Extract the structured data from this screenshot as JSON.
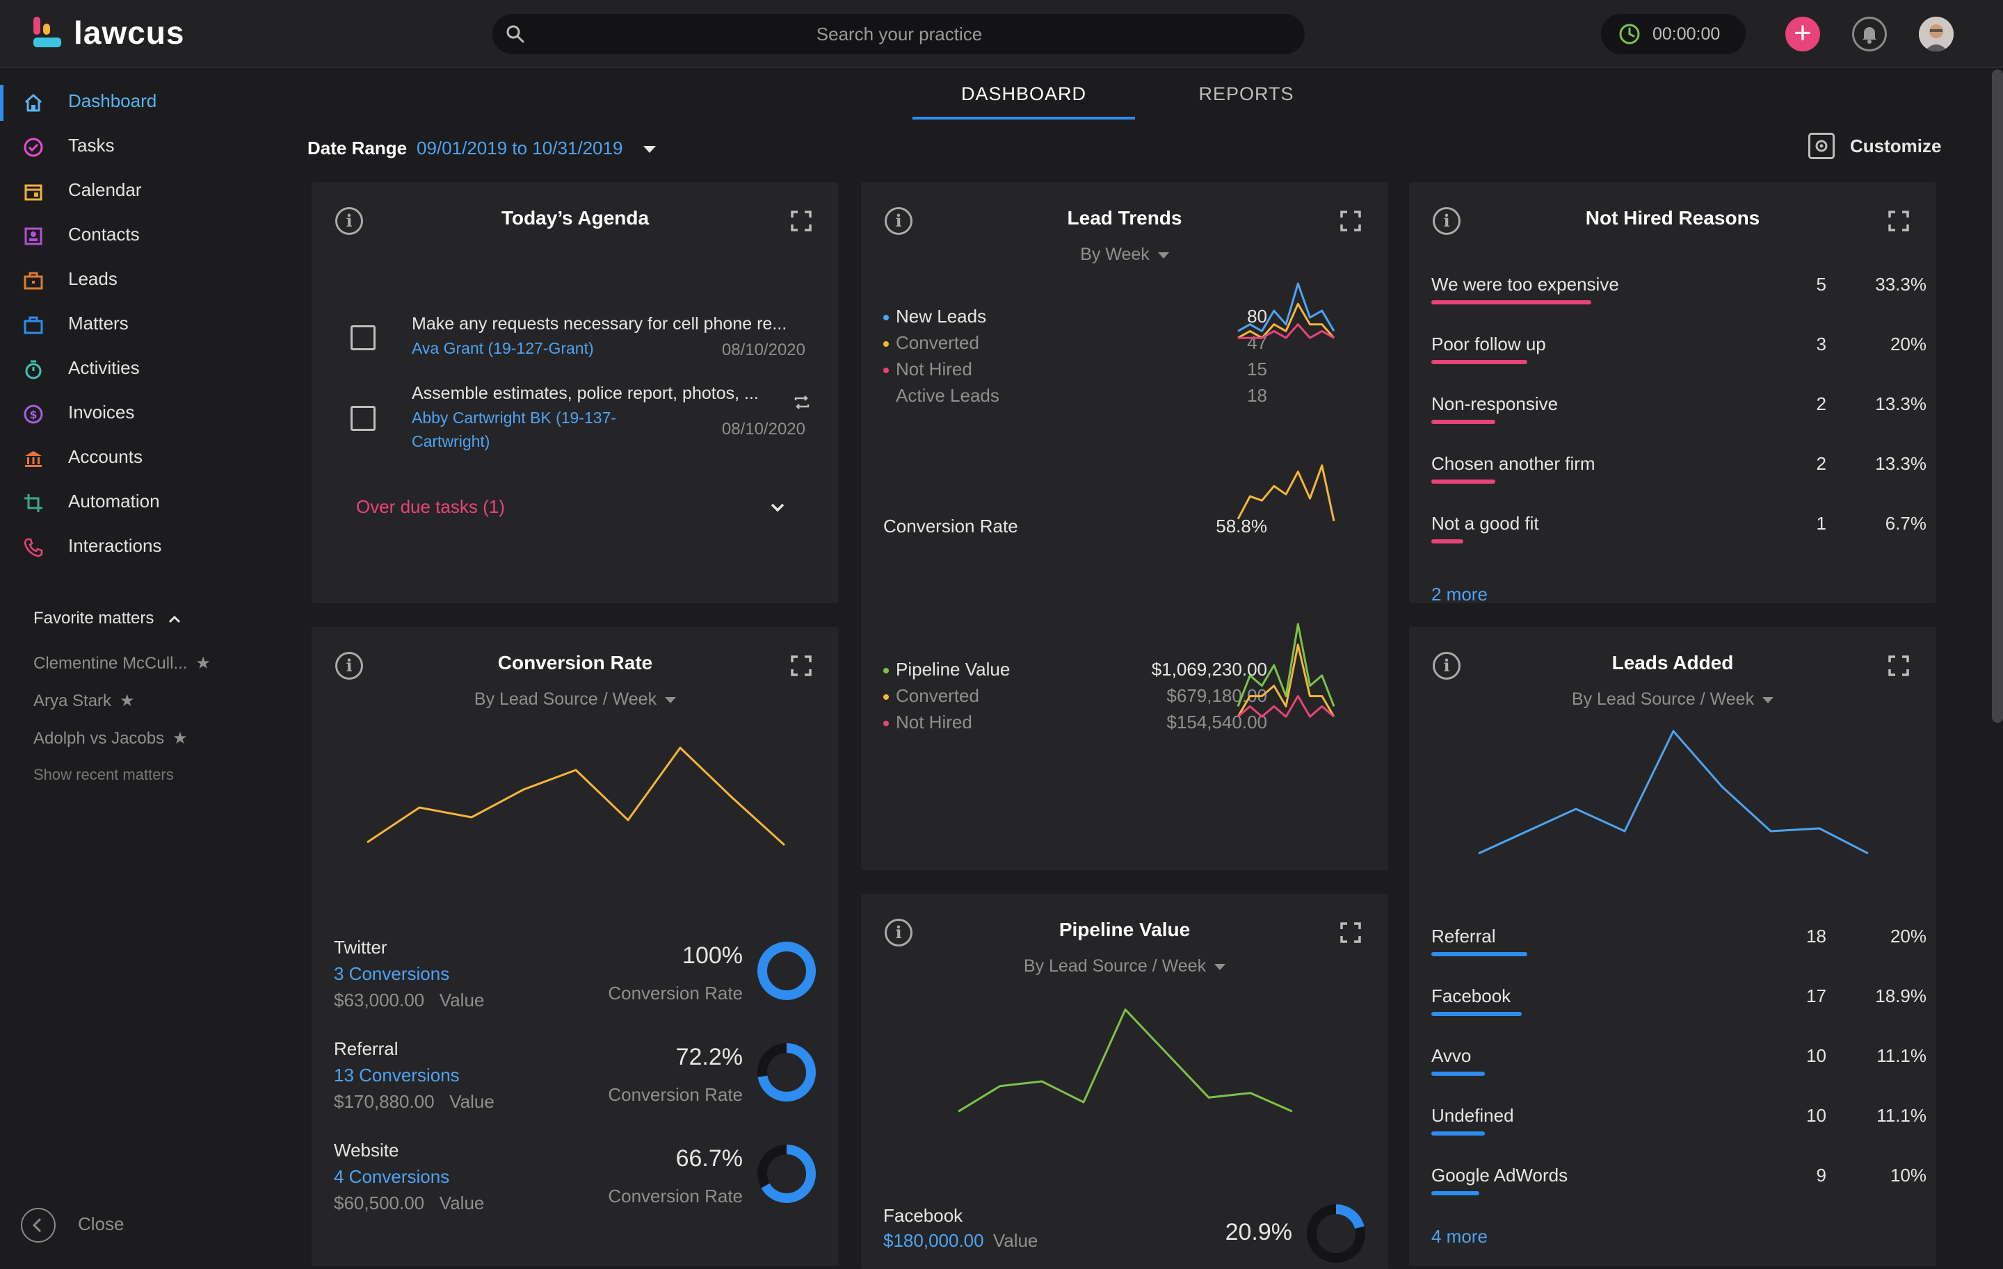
{
  "app": {
    "name": "lawcus"
  },
  "search": {
    "placeholder": "Search your practice"
  },
  "timer": {
    "value": "00:00:00"
  },
  "header": {
    "add_label": "+"
  },
  "sidebar": {
    "items": [
      {
        "label": "Dashboard",
        "icon": "home-icon",
        "color": "#58b3f2"
      },
      {
        "label": "Tasks",
        "icon": "check-circle-icon",
        "color": "#e84cd0"
      },
      {
        "label": "Calendar",
        "icon": "calendar-icon",
        "color": "#f0b23a"
      },
      {
        "label": "Contacts",
        "icon": "contact-card-icon",
        "color": "#b44fd8"
      },
      {
        "label": "Leads",
        "icon": "briefcase-icon",
        "color": "#e07a30"
      },
      {
        "label": "Matters",
        "icon": "case-icon",
        "color": "#2f8cf0"
      },
      {
        "label": "Activities",
        "icon": "stopwatch-icon",
        "color": "#3dc4b0"
      },
      {
        "label": "Invoices",
        "icon": "dollar-circle-icon",
        "color": "#a65de0"
      },
      {
        "label": "Accounts",
        "icon": "bank-icon",
        "color": "#e8743a"
      },
      {
        "label": "Automation",
        "icon": "crop-icon",
        "color": "#3da88c"
      },
      {
        "label": "Interactions",
        "icon": "phone-icon",
        "color": "#e8437a"
      }
    ],
    "favorites_title": "Favorite matters",
    "favorites": [
      "Clementine McCull...",
      "Arya Stark",
      "Adolph vs Jacobs"
    ],
    "show_recent": "Show recent matters",
    "close_label": "Close"
  },
  "tabs": [
    {
      "label": "DASHBOARD"
    },
    {
      "label": "REPORTS"
    }
  ],
  "date_range": {
    "label": "Date Range",
    "value": "09/01/2019 to 10/31/2019"
  },
  "customize": {
    "label": "Customize"
  },
  "agenda": {
    "title": "Today’s Agenda",
    "tasks": [
      {
        "title": "Make any requests necessary for cell phone re...",
        "matter": "Ava Grant (19-127-Grant)",
        "date": "08/10/2020"
      },
      {
        "title": "Assemble estimates, police report, photos, ...",
        "matter": "Abby Cartwright BK (19-137-Cartwright)",
        "date": "08/10/2020"
      }
    ],
    "overdue": "Over due tasks (1)"
  },
  "lead_trends": {
    "title": "Lead Trends",
    "subtitle": "By Week",
    "rows": [
      {
        "label": "New Leads",
        "value": "80",
        "color": "#4ea3f2"
      },
      {
        "label": "Converted",
        "value": "47",
        "color": "#f5b53a"
      },
      {
        "label": "Not Hired",
        "value": "15",
        "color": "#e8437a"
      },
      {
        "label": "Active Leads",
        "value": "18",
        "color": ""
      }
    ],
    "conversion": {
      "label": "Conversion Rate",
      "value": "58.8%"
    },
    "pipeline": [
      {
        "label": "Pipeline Value",
        "value": "$1,069,230.00",
        "color": "#7cc24a"
      },
      {
        "label": "Converted",
        "value": "$679,180.00",
        "color": "#f5b53a"
      },
      {
        "label": "Not Hired",
        "value": "$154,540.00",
        "color": "#e8437a"
      }
    ],
    "spark_new": [
      2,
      3,
      2,
      5,
      3,
      9,
      4,
      5,
      2
    ],
    "spark_converted": [
      1,
      2,
      1,
      3,
      2,
      6,
      3,
      3,
      1
    ],
    "spark_nothired": [
      1,
      1,
      1,
      2,
      1,
      3,
      1,
      2,
      1
    ],
    "spark_rate": [
      40,
      62,
      58,
      72,
      64,
      86,
      60,
      92,
      38
    ],
    "spark_pipe": [
      2,
      5,
      4,
      6,
      3,
      10,
      4,
      5,
      2
    ],
    "spark_pipe_conv": [
      1,
      3,
      3,
      4,
      2,
      8,
      3,
      3,
      1
    ],
    "spark_pipe_nh": [
      1,
      2,
      1,
      2,
      1,
      3,
      1,
      2,
      1
    ]
  },
  "not_hired": {
    "title": "Not Hired Reasons",
    "items": [
      {
        "label": "We were too expensive",
        "count": "5",
        "pct": "33.3%",
        "fraction": 0.333
      },
      {
        "label": "Poor follow up",
        "count": "3",
        "pct": "20%",
        "fraction": 0.2
      },
      {
        "label": "Non-responsive",
        "count": "2",
        "pct": "13.3%",
        "fraction": 0.133
      },
      {
        "label": "Chosen another firm",
        "count": "2",
        "pct": "13.3%",
        "fraction": 0.133
      },
      {
        "label": "Not a good fit",
        "count": "1",
        "pct": "6.7%",
        "fraction": 0.067
      }
    ],
    "more": "2 more"
  },
  "conversion_rate": {
    "title": "Conversion Rate",
    "subtitle": "By Lead Source / Week",
    "line": [
      20,
      45,
      38,
      58,
      72,
      36,
      88,
      52,
      18
    ],
    "sources": [
      {
        "name": "Twitter",
        "conversions": "3 Conversions",
        "value": "$63,000.00",
        "value_label": "Value",
        "pct": "100%",
        "rate_label": "Conversion Rate",
        "fraction": 1.0
      },
      {
        "name": "Referral",
        "conversions": "13 Conversions",
        "value": "$170,880.00",
        "value_label": "Value",
        "pct": "72.2%",
        "rate_label": "Conversion Rate",
        "fraction": 0.722
      },
      {
        "name": "Website",
        "conversions": "4 Conversions",
        "value": "$60,500.00",
        "value_label": "Value",
        "pct": "66.7%",
        "rate_label": "Conversion Rate",
        "fraction": 0.667
      }
    ]
  },
  "pipeline_value": {
    "title": "Pipeline Value",
    "subtitle": "By Lead Source / Week",
    "line": [
      22,
      44,
      48,
      30,
      110,
      72,
      34,
      38,
      22
    ],
    "source": {
      "name": "Facebook",
      "value": "$180,000.00",
      "value_label": "Value",
      "pct": "20.9%",
      "fraction": 0.209
    }
  },
  "leads_added": {
    "title": "Leads Added",
    "subtitle": "By Lead Source / Week",
    "line": [
      12,
      28,
      44,
      28,
      100,
      60,
      28,
      30,
      12
    ],
    "items": [
      {
        "label": "Referral",
        "count": "18",
        "pct": "20%",
        "fraction": 0.2
      },
      {
        "label": "Facebook",
        "count": "17",
        "pct": "18.9%",
        "fraction": 0.189
      },
      {
        "label": "Avvo",
        "count": "10",
        "pct": "11.1%",
        "fraction": 0.111
      },
      {
        "label": "Undefined",
        "count": "10",
        "pct": "11.1%",
        "fraction": 0.111
      },
      {
        "label": "Google AdWords",
        "count": "9",
        "pct": "10%",
        "fraction": 0.1
      }
    ],
    "more": "4 more"
  },
  "colors": {
    "accent": "#2f8cf0",
    "pink": "#e8437a",
    "yellow": "#f5b53a",
    "green": "#7cc24a",
    "blue": "#4ea3f2"
  }
}
